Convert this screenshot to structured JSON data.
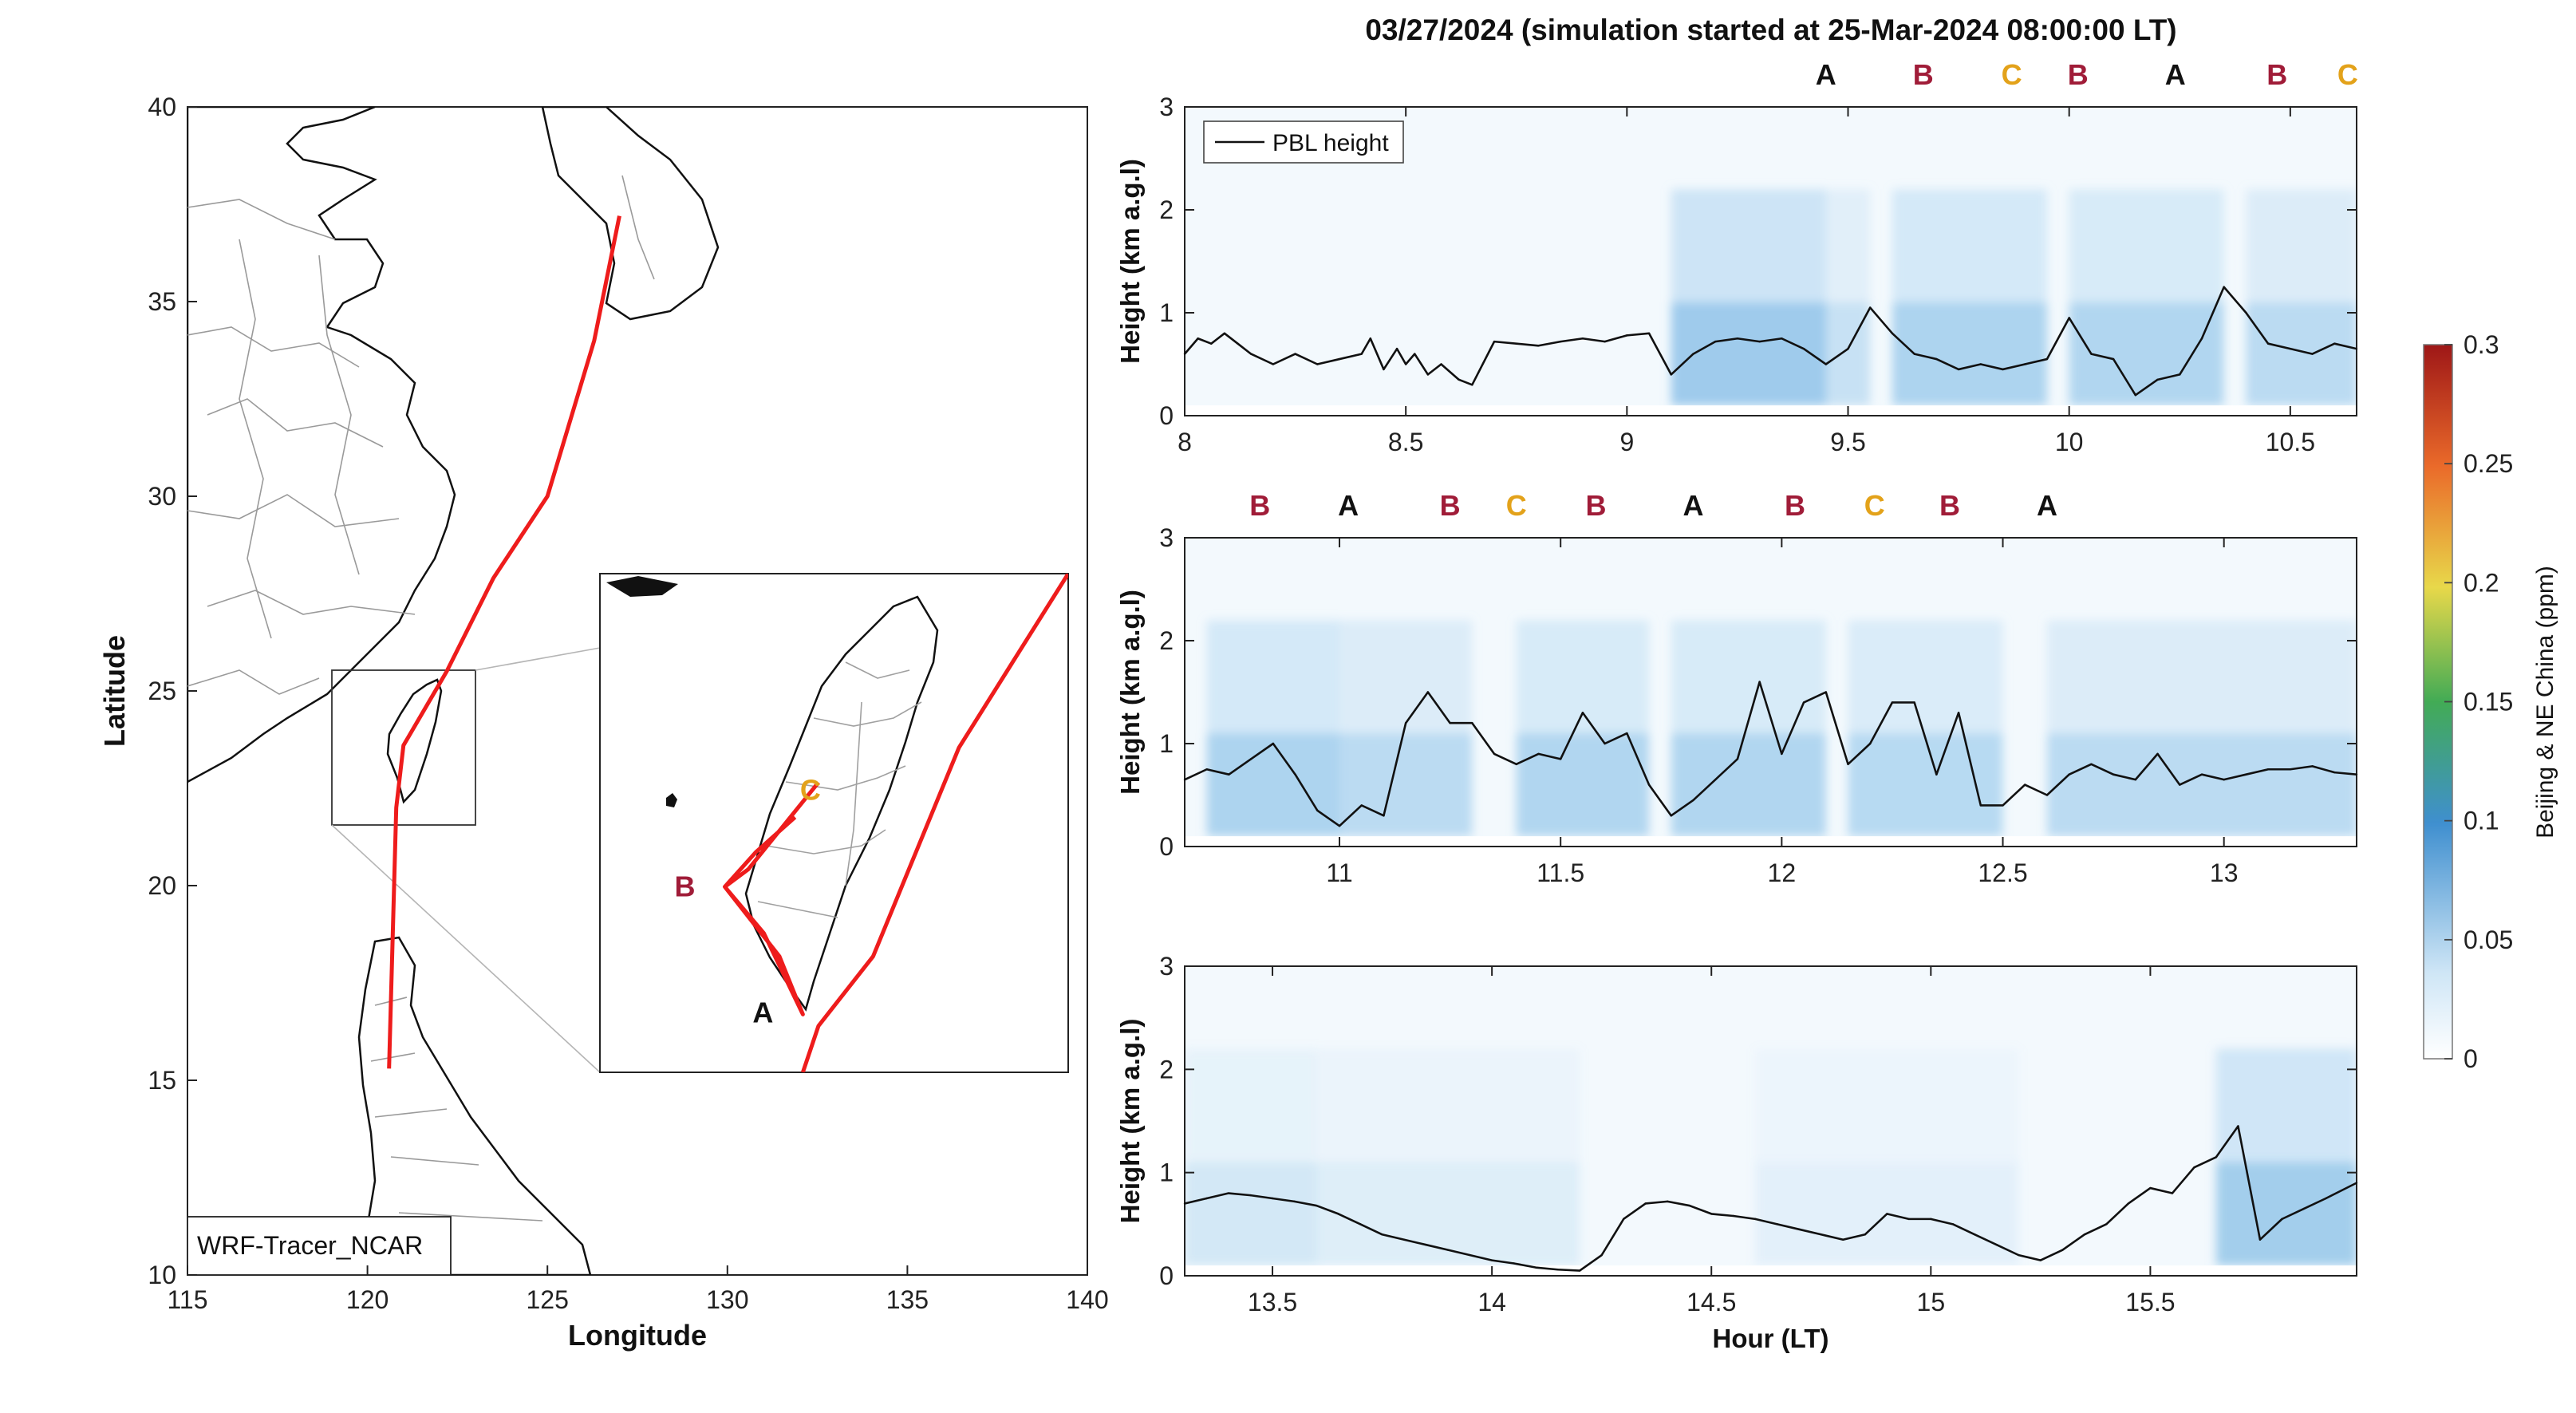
{
  "title": "03/27/2024 (simulation started at 25-Mar-2024 08:00:00 LT)",
  "map": {
    "xlabel": "Longitude",
    "ylabel": "Latitude",
    "xticks": [
      115,
      120,
      125,
      130,
      135,
      140
    ],
    "yticks": [
      10,
      15,
      20,
      25,
      30,
      35,
      40
    ],
    "xlim": [
      115,
      140
    ],
    "ylim": [
      10,
      40
    ],
    "model_label": "WRF-Tracer_NCAR",
    "trajectory_color": "#ee1c1c",
    "trajectory": [
      [
        127.0,
        37.2
      ],
      [
        126.3,
        34.0
      ],
      [
        125.0,
        30.0
      ],
      [
        123.5,
        27.9
      ],
      [
        122.2,
        25.5
      ],
      [
        121.0,
        23.6
      ],
      [
        120.8,
        22.0
      ],
      [
        120.6,
        15.3
      ]
    ],
    "inset_extent": {
      "lon": [
        119.3,
        122.3
      ],
      "lat": [
        21.5,
        25.8
      ]
    },
    "inset_points": {
      "A": {
        "lon": 120.6,
        "lat": 22.0
      },
      "B": {
        "lon": 120.1,
        "lat": 23.1
      },
      "C": {
        "lon": 120.7,
        "lat": 24.0
      }
    },
    "point_labels": [
      "A",
      "B",
      "C"
    ]
  },
  "colorbar": {
    "label": "Beijing & NE China (ppm)",
    "ticks": [
      "0",
      "0.05",
      "0.1",
      "0.15",
      "0.2",
      "0.25",
      "0.3"
    ],
    "range": [
      0,
      0.3
    ]
  },
  "label_colors": {
    "A": "#111111",
    "B": "#a01c38",
    "C": "#e3a21a"
  },
  "chart_data": [
    {
      "type": "line",
      "ylabel": "Height (km a.g.l)",
      "xlim": [
        8,
        10.65
      ],
      "ylim": [
        0,
        3
      ],
      "xticks": [
        "8",
        "8.5",
        "9",
        "9.5",
        "10",
        "10.5"
      ],
      "yticks": [
        "0",
        "1",
        "2",
        "3"
      ],
      "legend": "PBL height",
      "top_labels": [
        {
          "t": 9.45,
          "l": "A"
        },
        {
          "t": 9.67,
          "l": "B"
        },
        {
          "t": 9.87,
          "l": "C"
        },
        {
          "t": 10.02,
          "l": "B"
        },
        {
          "t": 10.24,
          "l": "A"
        },
        {
          "t": 10.47,
          "l": "B"
        },
        {
          "t": 10.63,
          "l": "C"
        }
      ],
      "series": [
        {
          "name": "PBL height",
          "x": [
            8.0,
            8.03,
            8.06,
            8.09,
            8.12,
            8.15,
            8.2,
            8.25,
            8.3,
            8.35,
            8.4,
            8.42,
            8.45,
            8.48,
            8.5,
            8.52,
            8.55,
            8.58,
            8.62,
            8.65,
            8.7,
            8.75,
            8.8,
            8.85,
            8.9,
            8.95,
            9.0,
            9.05,
            9.1,
            9.15,
            9.2,
            9.25,
            9.3,
            9.35,
            9.4,
            9.45,
            9.5,
            9.55,
            9.6,
            9.65,
            9.7,
            9.75,
            9.8,
            9.85,
            9.9,
            9.95,
            10.0,
            10.05,
            10.1,
            10.15,
            10.2,
            10.25,
            10.3,
            10.35,
            10.4,
            10.45,
            10.5,
            10.55,
            10.6,
            10.65
          ],
          "y": [
            0.6,
            0.75,
            0.7,
            0.8,
            0.7,
            0.6,
            0.5,
            0.6,
            0.5,
            0.55,
            0.6,
            0.75,
            0.45,
            0.65,
            0.5,
            0.6,
            0.4,
            0.5,
            0.35,
            0.3,
            0.72,
            0.7,
            0.68,
            0.72,
            0.75,
            0.72,
            0.78,
            0.8,
            0.4,
            0.6,
            0.72,
            0.75,
            0.72,
            0.75,
            0.65,
            0.5,
            0.65,
            1.05,
            0.8,
            0.6,
            0.55,
            0.45,
            0.5,
            0.45,
            0.5,
            0.55,
            0.95,
            0.6,
            0.55,
            0.2,
            0.35,
            0.4,
            0.75,
            1.25,
            1.0,
            0.7,
            0.65,
            0.6,
            0.7,
            0.65
          ]
        }
      ]
    },
    {
      "type": "line",
      "ylabel": "Height (km a.g.l)",
      "xlim": [
        10.65,
        13.3
      ],
      "ylim": [
        0,
        3
      ],
      "xticks": [
        "11",
        "11.5",
        "12",
        "12.5",
        "13"
      ],
      "yticks": [
        "0",
        "1",
        "2",
        "3"
      ],
      "top_labels": [
        {
          "t": 10.82,
          "l": "B"
        },
        {
          "t": 11.02,
          "l": "A"
        },
        {
          "t": 11.25,
          "l": "B"
        },
        {
          "t": 11.4,
          "l": "C"
        },
        {
          "t": 11.58,
          "l": "B"
        },
        {
          "t": 11.8,
          "l": "A"
        },
        {
          "t": 12.03,
          "l": "B"
        },
        {
          "t": 12.21,
          "l": "C"
        },
        {
          "t": 12.38,
          "l": "B"
        },
        {
          "t": 12.6,
          "l": "A"
        }
      ],
      "series": [
        {
          "name": "PBL height",
          "x": [
            10.65,
            10.7,
            10.75,
            10.8,
            10.85,
            10.9,
            10.95,
            11.0,
            11.05,
            11.1,
            11.15,
            11.2,
            11.25,
            11.3,
            11.35,
            11.4,
            11.45,
            11.5,
            11.55,
            11.6,
            11.65,
            11.7,
            11.75,
            11.8,
            11.85,
            11.9,
            11.95,
            12.0,
            12.05,
            12.1,
            12.15,
            12.2,
            12.25,
            12.3,
            12.35,
            12.4,
            12.45,
            12.5,
            12.55,
            12.6,
            12.65,
            12.7,
            12.75,
            12.8,
            12.85,
            12.9,
            12.95,
            13.0,
            13.05,
            13.1,
            13.15,
            13.2,
            13.25,
            13.3
          ],
          "y": [
            0.65,
            0.75,
            0.7,
            0.85,
            1.0,
            0.7,
            0.35,
            0.2,
            0.4,
            0.3,
            1.2,
            1.5,
            1.2,
            1.2,
            0.9,
            0.8,
            0.9,
            0.85,
            1.3,
            1.0,
            1.1,
            0.6,
            0.3,
            0.45,
            0.65,
            0.85,
            1.6,
            0.9,
            1.4,
            1.5,
            0.8,
            1.0,
            1.4,
            1.4,
            0.7,
            1.3,
            0.4,
            0.4,
            0.6,
            0.5,
            0.7,
            0.8,
            0.7,
            0.65,
            0.9,
            0.6,
            0.7,
            0.65,
            0.7,
            0.75,
            0.75,
            0.78,
            0.72,
            0.7
          ]
        }
      ]
    },
    {
      "type": "line",
      "ylabel": "Height (km a.g.l)",
      "xlabel": "Hour (LT)",
      "xlim": [
        13.3,
        15.97
      ],
      "ylim": [
        0,
        3
      ],
      "xticks": [
        "13.5",
        "14",
        "14.5",
        "15",
        "15.5"
      ],
      "yticks": [
        "0",
        "1",
        "2",
        "3"
      ],
      "series": [
        {
          "name": "PBL height",
          "x": [
            13.3,
            13.35,
            13.4,
            13.45,
            13.5,
            13.55,
            13.6,
            13.65,
            13.7,
            13.75,
            13.8,
            13.85,
            13.9,
            13.95,
            14.0,
            14.05,
            14.1,
            14.15,
            14.2,
            14.25,
            14.3,
            14.35,
            14.4,
            14.45,
            14.5,
            14.55,
            14.6,
            14.65,
            14.7,
            14.75,
            14.8,
            14.85,
            14.9,
            14.95,
            15.0,
            15.05,
            15.1,
            15.15,
            15.2,
            15.25,
            15.3,
            15.35,
            15.4,
            15.45,
            15.5,
            15.55,
            15.6,
            15.65,
            15.7,
            15.75,
            15.8,
            15.85,
            15.9,
            15.97
          ],
          "y": [
            0.7,
            0.75,
            0.8,
            0.78,
            0.75,
            0.72,
            0.68,
            0.6,
            0.5,
            0.4,
            0.35,
            0.3,
            0.25,
            0.2,
            0.15,
            0.12,
            0.08,
            0.06,
            0.05,
            0.2,
            0.55,
            0.7,
            0.72,
            0.68,
            0.6,
            0.58,
            0.55,
            0.5,
            0.45,
            0.4,
            0.35,
            0.4,
            0.6,
            0.55,
            0.55,
            0.5,
            0.4,
            0.3,
            0.2,
            0.15,
            0.25,
            0.4,
            0.5,
            0.7,
            0.85,
            0.8,
            1.05,
            1.15,
            1.45,
            0.35,
            0.55,
            0.65,
            0.75,
            0.9
          ]
        }
      ]
    }
  ]
}
